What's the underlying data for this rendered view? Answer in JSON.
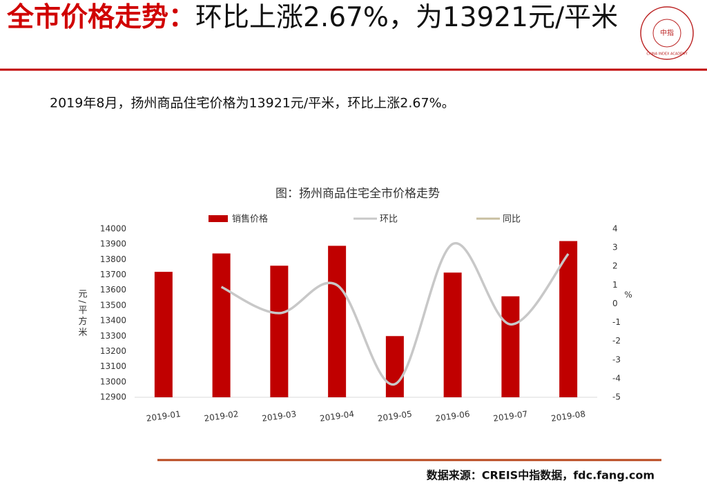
{
  "header": {
    "title_highlight": "全市价格走势：",
    "title_rest": "环比上涨2.67%，为13921元/平米",
    "logo_center": "中指",
    "logo_ring": "CHINA INDEX ACADEMY"
  },
  "summary": "2019年8月，扬州商品住宅价格为13921元/平米，环比上涨2.67%。",
  "chart_data": {
    "type": "bar_line",
    "title": "图：扬州商品住宅全市价格走势",
    "categories": [
      "2019-01",
      "2019-02",
      "2019-03",
      "2019-04",
      "2019-05",
      "2019-06",
      "2019-07",
      "2019-08"
    ],
    "series": [
      {
        "name": "销售价格",
        "type": "bar",
        "color": "#c00000",
        "values": [
          13720,
          13840,
          13760,
          13890,
          13300,
          13715,
          13560,
          13921
        ]
      },
      {
        "name": "环比",
        "type": "line",
        "axis": "y2",
        "color": "#c8c8c8",
        "values": [
          null,
          0.9,
          -0.5,
          1.0,
          -4.3,
          3.2,
          -1.1,
          2.67
        ]
      },
      {
        "name": "同比",
        "type": "line",
        "axis": "y2",
        "color": "#c8bfa0",
        "values": [
          null,
          null,
          null,
          null,
          null,
          null,
          null,
          null
        ]
      }
    ],
    "y_label": "元/平方米",
    "y2_label": "%",
    "ylim": [
      12900,
      14000
    ],
    "yticks": [
      12900,
      13000,
      13100,
      13200,
      13300,
      13400,
      13500,
      13600,
      13700,
      13800,
      13900,
      14000
    ],
    "y2lim": [
      -5,
      4
    ],
    "y2ticks": [
      -5,
      -4,
      -3,
      -2,
      -1,
      0,
      1,
      2,
      3,
      4
    ],
    "legend": "top",
    "grid": false
  },
  "footer": {
    "source": "数据来源：CREIS中指数据，fdc.fang.com"
  }
}
